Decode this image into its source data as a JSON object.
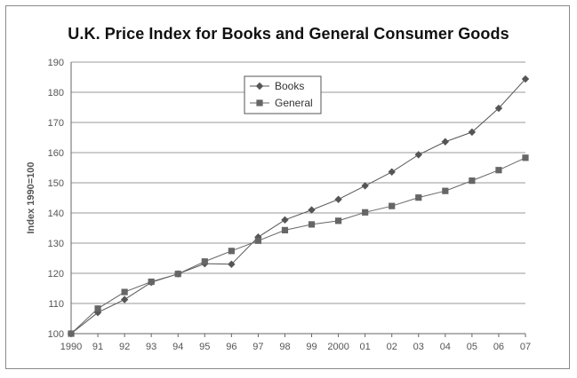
{
  "chart_data": {
    "type": "line",
    "title": "U.K. Price Index for Books and General Consumer Goods",
    "xlabel": "",
    "ylabel": "Index 1990=100",
    "categories": [
      "1990",
      "91",
      "92",
      "93",
      "94",
      "95",
      "96",
      "97",
      "98",
      "99",
      "2000",
      "01",
      "02",
      "03",
      "04",
      "05",
      "06",
      "07"
    ],
    "ylim": [
      100,
      190
    ],
    "yticks": [
      100,
      110,
      120,
      130,
      140,
      150,
      160,
      170,
      180,
      190
    ],
    "grid": true,
    "legend_position": "top-center",
    "series": [
      {
        "name": "Books",
        "marker": "diamond",
        "color": "#555555",
        "values": [
          100,
          107,
          111.3,
          117,
          119.8,
          123.2,
          123,
          132,
          137.7,
          141,
          144.5,
          149,
          153.6,
          159.3,
          163.6,
          166.8,
          174.7,
          184.4
        ]
      },
      {
        "name": "General",
        "marker": "square",
        "color": "#666666",
        "values": [
          100,
          108.3,
          113.8,
          117.2,
          119.8,
          123.9,
          127.4,
          130.8,
          134.3,
          136.2,
          137.4,
          140.2,
          142.3,
          145.1,
          147.3,
          150.7,
          154.2,
          158.3
        ]
      }
    ]
  }
}
